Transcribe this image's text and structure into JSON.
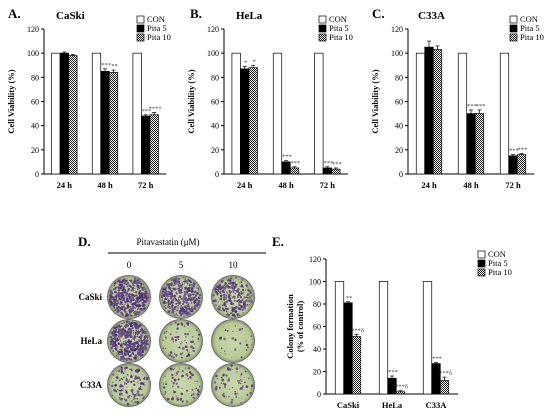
{
  "panels": [
    {
      "letter": "A.",
      "cell_line": "CaSki"
    },
    {
      "letter": "B.",
      "cell_line": "HeLa"
    },
    {
      "letter": "C.",
      "cell_line": "C33A"
    },
    {
      "letter": "D."
    },
    {
      "letter": "E."
    }
  ],
  "legend": [
    "CON",
    "Pita 5",
    "Pita 10"
  ],
  "colony_assay": {
    "treatment_label": "Pitavastatin",
    "unit": "(μM)",
    "doses": [
      "0",
      "5",
      "10"
    ],
    "cell_lines": [
      "CaSki",
      "HeLa",
      "C33A"
    ],
    "density": [
      [
        1.0,
        0.8,
        0.55
      ],
      [
        1.0,
        0.14,
        0.05
      ],
      [
        0.28,
        0.14,
        0.13
      ]
    ]
  },
  "chart_data": [
    {
      "type": "bar",
      "title": "CaSki",
      "ylabel": "Cell Viability (%)",
      "categories": [
        "24 h",
        "48 h",
        "72 h"
      ],
      "ylim": [
        0,
        120
      ],
      "yticks": [
        "0",
        "20",
        "40",
        "60",
        "80",
        "100",
        "120"
      ],
      "series": [
        {
          "name": "CON",
          "values": [
            100,
            100,
            100
          ]
        },
        {
          "name": "Pita 5",
          "values": [
            100,
            85,
            48
          ]
        },
        {
          "name": "Pita 10",
          "values": [
            98,
            84,
            49
          ]
        }
      ],
      "errors": [
        [
          0,
          0,
          0
        ],
        [
          1,
          2,
          1
        ],
        [
          1,
          2,
          2
        ]
      ],
      "annotations": [
        [
          "",
          "",
          ""
        ],
        [
          "",
          "***",
          "***"
        ],
        [
          "",
          "**",
          "***†"
        ]
      ]
    },
    {
      "type": "bar",
      "title": "HeLa",
      "ylabel": "Cell Viability (%)",
      "categories": [
        "24 h",
        "48 h",
        "72 h"
      ],
      "ylim": [
        0,
        120
      ],
      "yticks": [
        "0",
        "20",
        "40",
        "60",
        "80",
        "100",
        "120"
      ],
      "series": [
        {
          "name": "CON",
          "values": [
            100,
            100,
            100
          ]
        },
        {
          "name": "Pita 5",
          "values": [
            87,
            10,
            5
          ]
        },
        {
          "name": "Pita 10",
          "values": [
            88,
            5,
            4
          ]
        }
      ],
      "errors": [
        [
          0,
          0,
          0
        ],
        [
          2,
          1,
          1
        ],
        [
          2,
          1,
          1
        ]
      ],
      "annotations": [
        [
          "",
          "",
          ""
        ],
        [
          "*",
          "***",
          "***"
        ],
        [
          "*",
          "***",
          "***"
        ]
      ]
    },
    {
      "type": "bar",
      "title": "C33A",
      "ylabel": "Cell Viability (%)",
      "categories": [
        "24 h",
        "48 h",
        "72 h"
      ],
      "ylim": [
        0,
        120
      ],
      "yticks": [
        "0",
        "20",
        "40",
        "60",
        "80",
        "100",
        "120"
      ],
      "series": [
        {
          "name": "CON",
          "values": [
            100,
            100,
            100
          ]
        },
        {
          "name": "Pita 5",
          "values": [
            105,
            50,
            15
          ]
        },
        {
          "name": "Pita 10",
          "values": [
            103,
            50,
            16
          ]
        }
      ],
      "errors": [
        [
          0,
          0,
          0
        ],
        [
          5,
          3,
          1
        ],
        [
          3,
          3,
          1
        ]
      ],
      "annotations": [
        [
          "",
          "",
          ""
        ],
        [
          "",
          "***",
          "***"
        ],
        [
          "",
          "***",
          "***"
        ]
      ]
    },
    {
      "type": "bar",
      "title": "",
      "ylabel": "Colony formation (% of control)",
      "ylabel_lines": [
        "Colony formation",
        "(% of control)"
      ],
      "categories": [
        "CaSki",
        "HeLa",
        "C33A"
      ],
      "ylim": [
        0,
        120
      ],
      "yticks": [
        "0",
        "20",
        "40",
        "60",
        "80",
        "100",
        "120"
      ],
      "series": [
        {
          "name": "CON",
          "values": [
            100,
            100,
            100
          ]
        },
        {
          "name": "Pita 5",
          "values": [
            81,
            14,
            27
          ]
        },
        {
          "name": "Pita 10",
          "values": [
            51,
            2,
            12
          ]
        }
      ],
      "errors": [
        [
          0,
          0,
          0
        ],
        [
          1,
          2,
          1
        ],
        [
          2,
          1,
          3
        ]
      ],
      "annotations": [
        [
          "",
          "",
          ""
        ],
        [
          "**",
          "***",
          "***"
        ],
        [
          "***δ",
          "***δ",
          "***δ"
        ]
      ]
    }
  ]
}
